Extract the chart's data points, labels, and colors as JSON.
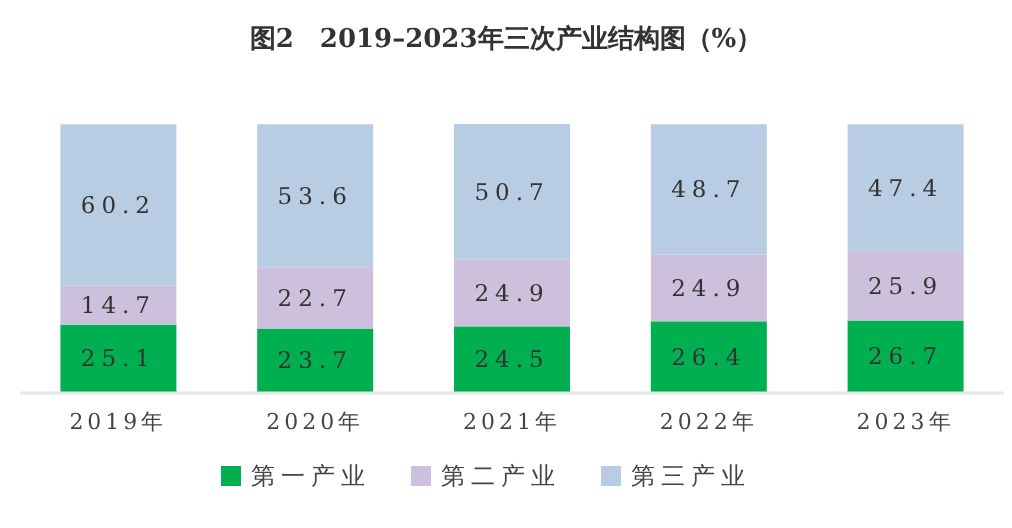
{
  "chart_data": {
    "type": "bar",
    "stacked": true,
    "title": "图2　2019–2023年三次产业结构图（%）",
    "categories": [
      "2019年",
      "2020年",
      "2021年",
      "2022年",
      "2023年"
    ],
    "series": [
      {
        "name": "第一产业",
        "color": "#00b050",
        "values": [
          25.1,
          23.7,
          24.5,
          26.4,
          26.7
        ]
      },
      {
        "name": "第二产业",
        "color": "#cdc0dc",
        "values": [
          14.7,
          22.7,
          24.9,
          24.9,
          25.9
        ]
      },
      {
        "name": "第三产业",
        "color": "#b8cce4",
        "values": [
          60.2,
          53.6,
          50.7,
          48.7,
          47.4
        ]
      }
    ],
    "data_labels": true,
    "legend": "bottom"
  }
}
